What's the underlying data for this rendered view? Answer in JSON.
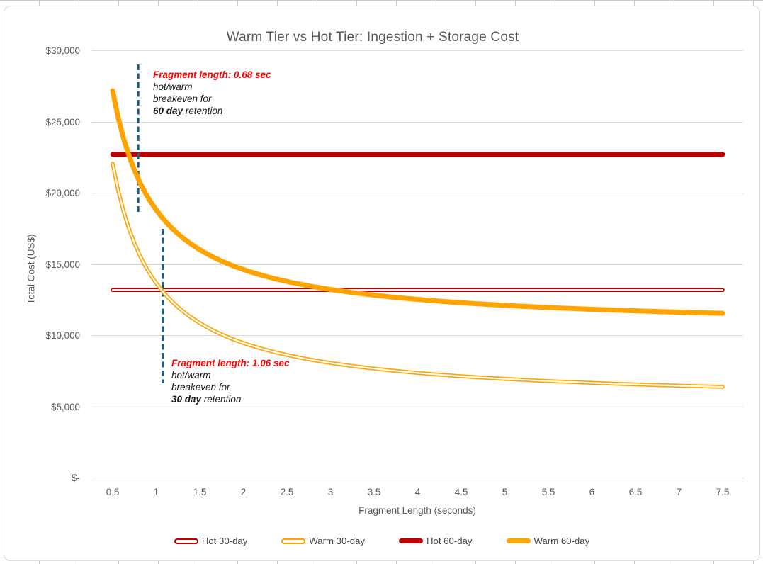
{
  "chart_data": {
    "type": "line",
    "title": "Warm Tier vs Hot Tier: Ingestion + Storage Cost",
    "xlabel": "Fragment Length (seconds)",
    "ylabel": "Total Cost (US$)",
    "xlim": [
      0.25,
      7.75
    ],
    "ylim": [
      0,
      30000
    ],
    "grid": "horizontal-only",
    "legend_position": "bottom",
    "x_ticks": [
      0.5,
      1,
      1.5,
      2,
      2.5,
      3,
      3.5,
      4,
      4.5,
      5,
      5.5,
      6,
      6.5,
      7,
      7.5
    ],
    "x_tick_labels": [
      "0.5",
      "1",
      "1.5",
      "2",
      "2.5",
      "3",
      "3.5",
      "4",
      "4.5",
      "5",
      "5.5",
      "6",
      "6.5",
      "7",
      "7.5"
    ],
    "y_ticks": [
      0,
      5000,
      10000,
      15000,
      20000,
      25000,
      30000
    ],
    "y_tick_labels": [
      "$-",
      "$5,000",
      "$10,000",
      "$15,000",
      "$20,000",
      "$25,000",
      "$30,000"
    ],
    "x": [
      0.5,
      1,
      1.5,
      2,
      2.5,
      3,
      3.5,
      4,
      4.5,
      5,
      5.5,
      6,
      6.5,
      7,
      7.5
    ],
    "series": [
      {
        "name": "Hot 30-day",
        "color": "#C00000",
        "line_style": "outlined-thin",
        "values": [
          13170,
          13170,
          13170,
          13170,
          13170,
          13170,
          13170,
          13170,
          13170,
          13170,
          13170,
          13170,
          13170,
          13170,
          13170
        ]
      },
      {
        "name": "Warm 30-day",
        "color": "#FFA301",
        "line_style": "outlined-thin",
        "values": [
          22050,
          13650,
          10850,
          9450,
          8610,
          8050,
          7650,
          7350,
          7115,
          6930,
          6775,
          6650,
          6540,
          6450,
          6370
        ]
      },
      {
        "name": "Hot 60-day",
        "color": "#C00000",
        "line_style": "solid-thick",
        "values": [
          22690,
          22690,
          22690,
          22690,
          22690,
          22690,
          22690,
          22690,
          22690,
          22690,
          22690,
          22690,
          22690,
          22690,
          22690
        ]
      },
      {
        "name": "Warm 60-day",
        "color": "#FFA301",
        "line_style": "solid-thick",
        "values": [
          27160,
          18790,
          16000,
          14605,
          13770,
          13210,
          12810,
          12510,
          12280,
          12095,
          11940,
          11815,
          11710,
          11615,
          11535
        ]
      }
    ],
    "annotations": [
      {
        "x": 0.68,
        "lines": [
          "Fragment length: 0.68 sec",
          "hot/warm",
          "breakeven for"
        ],
        "bold_text": "60 day",
        "tail_text": "retention",
        "title_color": "#FF0000",
        "line_color": "#20607E",
        "line_dash": "dashed"
      },
      {
        "x": 1.06,
        "lines": [
          "Fragment length: 1.06 sec",
          "hot/warm",
          "breakeven for"
        ],
        "bold_text": "30 day",
        "tail_text": "retention",
        "title_color": "#FF0000",
        "line_color": "#20607E",
        "line_dash": "dashed"
      }
    ]
  }
}
